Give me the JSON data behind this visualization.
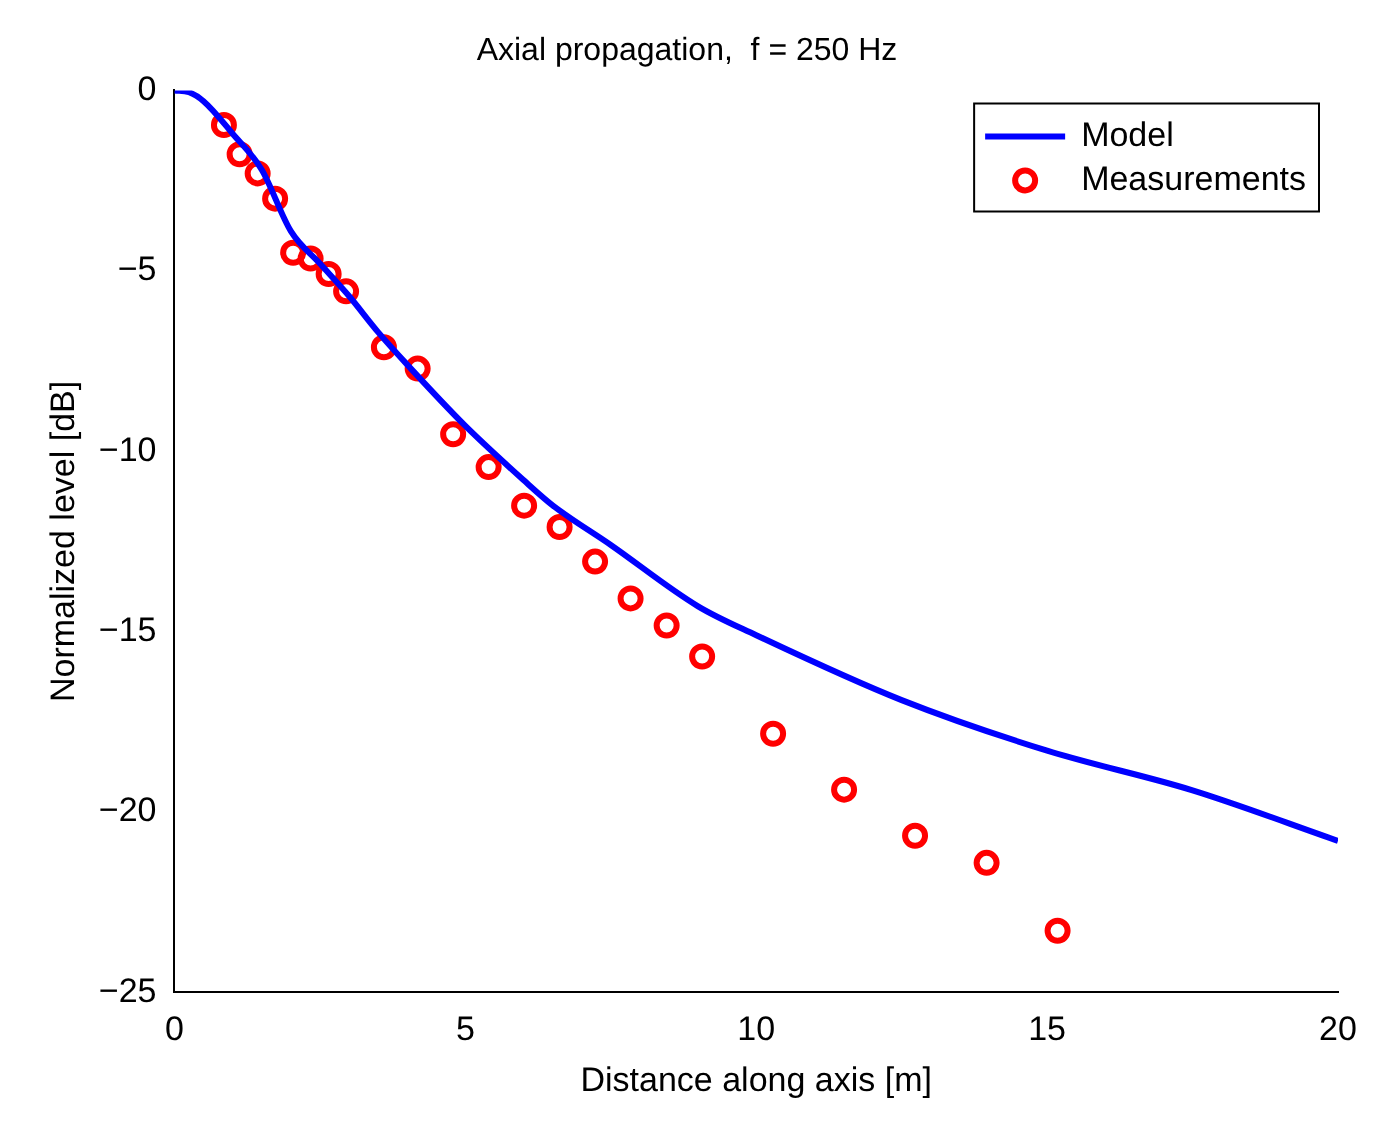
{
  "chart_data": {
    "type": "line",
    "title": "Axial propagation,  f = 250 Hz",
    "xlabel": "Distance along axis [m]",
    "ylabel": "Normalized level [dB]",
    "xlim": [
      0,
      20
    ],
    "xticks": [
      0,
      5,
      10,
      15,
      20
    ],
    "ylim": [
      -25,
      0
    ],
    "yticks": [
      -25,
      -20,
      -15,
      -10,
      -5,
      0
    ],
    "grid": false,
    "legend": "top right",
    "series": [
      {
        "name": "Model",
        "color": "#0000ff",
        "marker": "none",
        "line_style": "solid",
        "x": [
          0,
          0.25,
          0.5,
          1,
          1.5,
          2,
          2.5,
          3,
          3.5,
          4,
          5,
          6,
          6.5,
          7.5,
          9,
          10,
          12.5,
          15,
          17.5,
          20
        ],
        "values": [
          0,
          -0.05,
          -0.3,
          -1.2,
          -2.2,
          -3.9,
          -4.8,
          -5.7,
          -6.7,
          -7.6,
          -9.3,
          -10.8,
          -11.5,
          -12.6,
          -14.3,
          -15.1,
          -16.9,
          -18.3,
          -19.4,
          -20.8
        ]
      },
      {
        "name": "Measurements",
        "type": "scatter",
        "color": "#ff0000",
        "marker": "circle",
        "x": [
          0.85,
          1.12,
          1.43,
          1.73,
          2.04,
          2.34,
          2.65,
          2.95,
          3.6,
          4.18,
          4.79,
          5.4,
          6.01,
          6.62,
          7.23,
          7.84,
          8.46,
          9.07,
          10.29,
          11.51,
          12.73,
          13.96,
          15.18
        ],
        "values": [
          -0.96,
          -1.77,
          -2.3,
          -3,
          -4.5,
          -4.66,
          -5.09,
          -5.57,
          -7.12,
          -7.71,
          -9.53,
          -10.44,
          -11.51,
          -12.1,
          -13.06,
          -14.08,
          -14.83,
          -15.69,
          -17.83,
          -19.38,
          -20.66,
          -21.41,
          -23.29
        ]
      }
    ]
  }
}
